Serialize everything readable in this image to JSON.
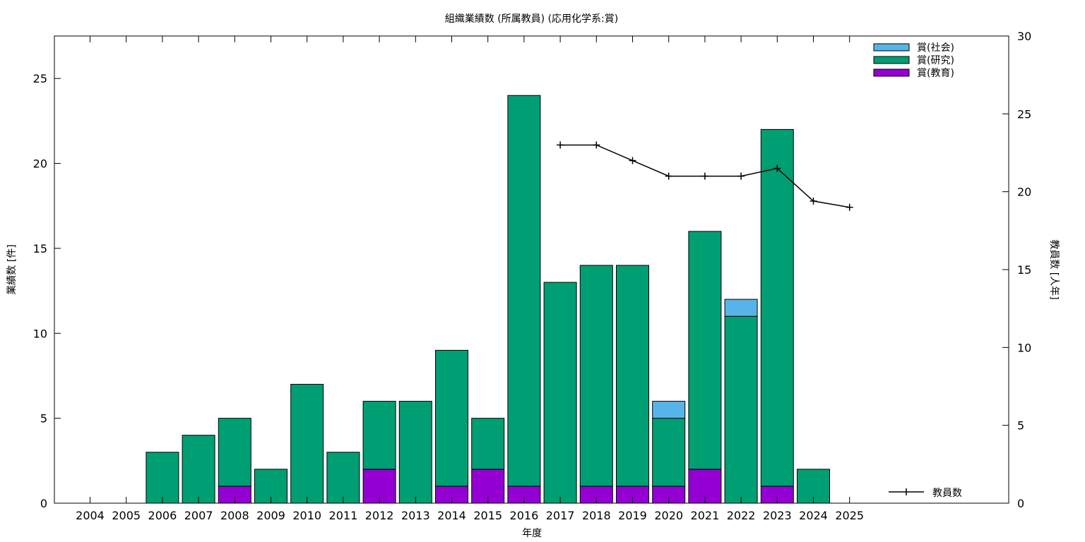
{
  "chart_data": {
    "type": "bar",
    "stacked": true,
    "title": "組織業績数 (所属教員) (応用化学系:賞)",
    "xlabel": "年度",
    "ylabel": "業績数 [件]",
    "y2label": "教員数 [人年]",
    "ylim": [
      0,
      27.5
    ],
    "y2lim": [
      0,
      30
    ],
    "yticks": [
      0,
      5,
      10,
      15,
      20,
      25
    ],
    "y2ticks": [
      0,
      5,
      10,
      15,
      20,
      25,
      30
    ],
    "categories": [
      "2004",
      "2005",
      "2006",
      "2007",
      "2008",
      "2009",
      "2010",
      "2011",
      "2012",
      "2013",
      "2014",
      "2015",
      "2016",
      "2017",
      "2018",
      "2019",
      "2020",
      "2021",
      "2022",
      "2023",
      "2024",
      "2025"
    ],
    "series": [
      {
        "name": "賞(教育)",
        "color": "#9400d3",
        "values": [
          0,
          0,
          0,
          0,
          1,
          0,
          0,
          0,
          2,
          0,
          1,
          2,
          1,
          0,
          1,
          1,
          1,
          2,
          0,
          1,
          0,
          0
        ]
      },
      {
        "name": "賞(研究)",
        "color": "#009e73",
        "values": [
          0,
          0,
          3,
          4,
          4,
          2,
          7,
          3,
          4,
          6,
          8,
          3,
          23,
          13,
          13,
          13,
          4,
          14,
          11,
          21,
          2,
          0
        ]
      },
      {
        "name": "賞(社会)",
        "color": "#56b4e9",
        "values": [
          0,
          0,
          0,
          0,
          0,
          0,
          0,
          0,
          0,
          0,
          0,
          0,
          0,
          0,
          0,
          0,
          1,
          0,
          1,
          0,
          0,
          0
        ]
      }
    ],
    "legend": [
      "賞(社会)",
      "賞(研究)",
      "賞(教育)"
    ],
    "legend_position": "top-right",
    "line_series": {
      "name": "教員数",
      "axis": "y2",
      "color": "#000000",
      "x": [
        "2017",
        "2018",
        "2019",
        "2020",
        "2021",
        "2022",
        "2023",
        "2024",
        "2025"
      ],
      "values": [
        23,
        23,
        22,
        21,
        21,
        21,
        21.5,
        19.4,
        19
      ]
    },
    "grid": false
  }
}
